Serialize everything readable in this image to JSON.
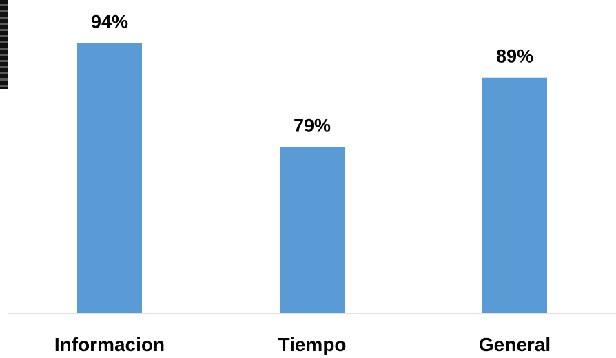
{
  "chart_data": {
    "type": "bar",
    "categories": [
      "Informacion",
      "Tiempo",
      "General"
    ],
    "values": [
      94,
      79,
      89
    ],
    "value_labels": [
      "94%",
      "79%",
      "89%"
    ],
    "title": "",
    "xlabel": "",
    "ylabel": "",
    "ylim": [
      55,
      100
    ],
    "grid": false,
    "legend": "none",
    "bar_color": "#5b9bd5",
    "axis_color": "#d9d9d9"
  }
}
